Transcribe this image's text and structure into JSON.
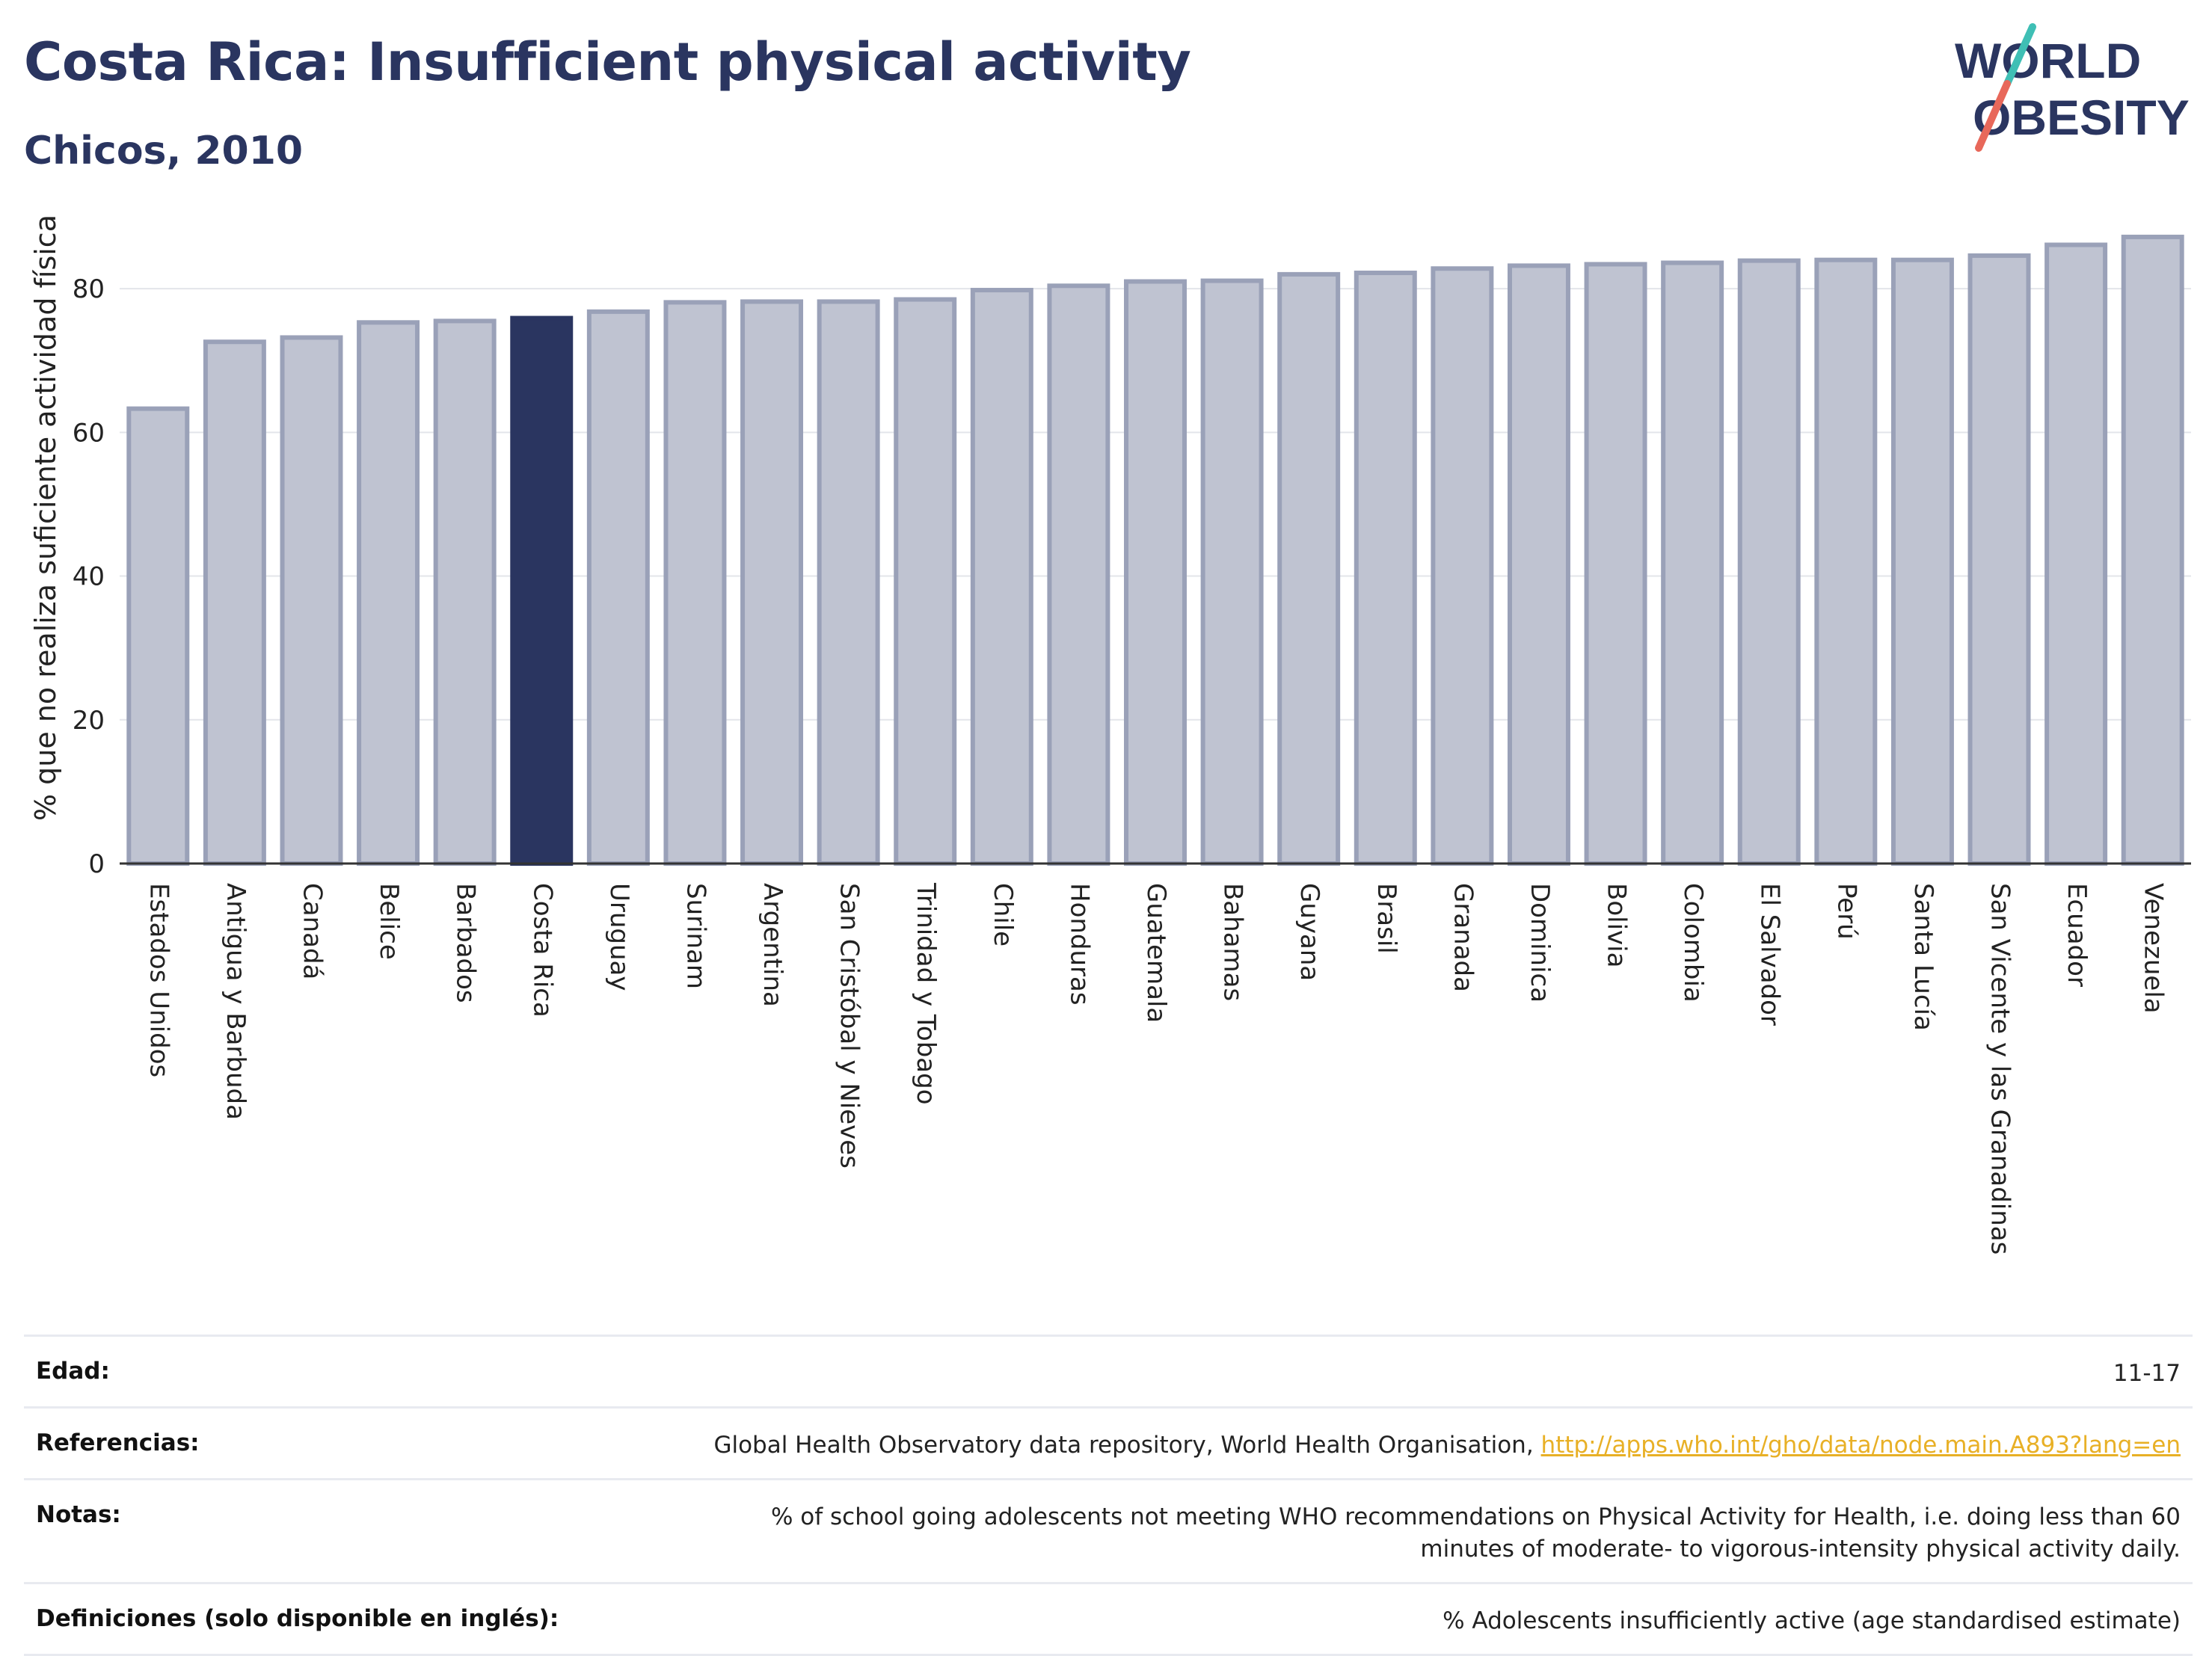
{
  "header": {
    "title": "Costa Rica: Insufficient physical activity",
    "subtitle": "Chicos, 2010",
    "logo_text_line1": "WORLD",
    "logo_text_line2": "OBESITY"
  },
  "colors": {
    "highlight": "#2a3560",
    "bar_fill": "#bfc3d1",
    "bar_stroke": "#9aa1b8",
    "title": "#2a3560",
    "link": "#e8b026",
    "logo_teal": "#3fbfb5",
    "logo_red": "#e8685a"
  },
  "chart_data": {
    "type": "bar",
    "ylabel": "% que no realiza suficiente actividad física",
    "ylim": [
      0,
      90
    ],
    "yticks": [
      0,
      20,
      40,
      60,
      80
    ],
    "grid": true,
    "highlight": "Costa Rica",
    "categories": [
      "Estados Unidos",
      "Antigua y Barbuda",
      "Canadá",
      "Belice",
      "Barbados",
      "Costa Rica",
      "Uruguay",
      "Surinam",
      "Argentina",
      "San Cristóbal y Nieves",
      "Trinidad y Tobago",
      "Chile",
      "Honduras",
      "Guatemala",
      "Bahamas",
      "Guyana",
      "Brasil",
      "Granada",
      "Dominica",
      "Bolivia",
      "Colombia",
      "El Salvador",
      "Perú",
      "Santa Lucía",
      "San Vicente y las Granadinas",
      "Ecuador",
      "Venezuela"
    ],
    "values": [
      63.3,
      72.6,
      73.2,
      75.3,
      75.5,
      75.9,
      76.8,
      78.1,
      78.2,
      78.2,
      78.5,
      79.8,
      80.4,
      81.0,
      81.1,
      82.0,
      82.2,
      82.8,
      83.2,
      83.4,
      83.6,
      83.9,
      84.0,
      84.0,
      84.6,
      86.1,
      87.2
    ]
  },
  "info": {
    "age_label": "Edad:",
    "age_value": "11-17",
    "refs_label": "Referencias:",
    "refs_text": "Global Health Observatory data repository, World Health Organisation, ",
    "refs_link": "http://apps.who.int/gho/data/node.main.A893?lang=en",
    "notes_label": "Notas:",
    "notes_value": "% of school going adolescents not meeting WHO recommendations on Physical Activity for Health, i.e. doing less than 60 minutes of moderate- to vigorous-intensity physical activity daily.",
    "defs_label": "Definiciones (solo disponible en inglés):",
    "defs_value": "% Adolescents insufficiently active (age standardised estimate)"
  }
}
